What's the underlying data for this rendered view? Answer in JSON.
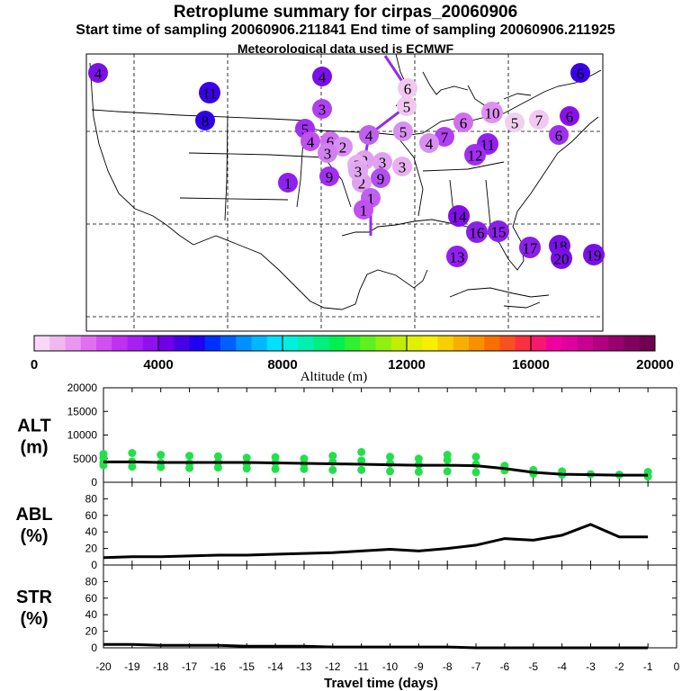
{
  "header": {
    "title": "Retroplume summary for cirpas_20060906",
    "sampling": "Start time of sampling 20060906.211841      End time of sampling 20060906.211925",
    "met": "Meteorological data used is ECMWF"
  },
  "colors": {
    "accent_green": "#22e04a",
    "line": "#000000",
    "plume": "#c47ce8"
  },
  "colorbar": {
    "xlabel": "Altitude (m)",
    "tick_labels": [
      "0",
      "4000",
      "8000",
      "12000",
      "16000",
      "20000"
    ],
    "range": [
      0,
      20000
    ],
    "colors": [
      "#f8d8f8",
      "#f0b8f0",
      "#e898f0",
      "#e070f0",
      "#d050f0",
      "#c030f0",
      "#a820f0",
      "#9010f0",
      "#7000e8",
      "#4800e8",
      "#2000f0",
      "#0030ff",
      "#0060ff",
      "#0090ff",
      "#00b8ff",
      "#00e0ff",
      "#00f0e0",
      "#00f0b0",
      "#00f080",
      "#00f050",
      "#30f030",
      "#60f020",
      "#90f010",
      "#c0f000",
      "#e0f000",
      "#f8f000",
      "#f8d000",
      "#f8b000",
      "#f89000",
      "#f87000",
      "#f85020",
      "#f83040",
      "#f81870",
      "#f000a0",
      "#e000a0",
      "#c80090",
      "#b00080",
      "#980070",
      "#800060",
      "#700050"
    ]
  },
  "map_labels": [
    {
      "t": "4",
      "x": 358,
      "y": 85,
      "c": "#7a10e8"
    },
    {
      "t": "11",
      "x": 233,
      "y": 103,
      "c": "#3a00e8"
    },
    {
      "t": "8",
      "x": 228,
      "y": 134,
      "c": "#3000ea"
    },
    {
      "t": "6",
      "x": 645,
      "y": 81,
      "c": "#3a00e8"
    },
    {
      "t": "3",
      "x": 358,
      "y": 121,
      "c": "#b040f0"
    },
    {
      "t": "5",
      "x": 339,
      "y": 143,
      "c": "#a030f0"
    },
    {
      "t": "4",
      "x": 345,
      "y": 157,
      "c": "#c050f0"
    },
    {
      "t": "6",
      "x": 367,
      "y": 157,
      "c": "#d070f0"
    },
    {
      "t": "2",
      "x": 381,
      "y": 163,
      "c": "#d890f0"
    },
    {
      "t": "4",
      "x": 410,
      "y": 150,
      "c": "#c060f0"
    },
    {
      "t": "5",
      "x": 448,
      "y": 146,
      "c": "#d890f0"
    },
    {
      "t": "6",
      "x": 453,
      "y": 98,
      "c": "#f0c8f0"
    },
    {
      "t": "5",
      "x": 452,
      "y": 118,
      "c": "#f0c8f0"
    },
    {
      "t": "6",
      "x": 515,
      "y": 136,
      "c": "#d070f0"
    },
    {
      "t": "10",
      "x": 547,
      "y": 125,
      "c": "#e090f0"
    },
    {
      "t": "5",
      "x": 572,
      "y": 136,
      "c": "#f0d0f0"
    },
    {
      "t": "7",
      "x": 599,
      "y": 133,
      "c": "#f0c8f0"
    },
    {
      "t": "6",
      "x": 633,
      "y": 129,
      "c": "#8a10e8"
    },
    {
      "t": "6",
      "x": 621,
      "y": 150,
      "c": "#a030f0"
    },
    {
      "t": "7",
      "x": 494,
      "y": 152,
      "c": "#b040f0"
    },
    {
      "t": "4",
      "x": 477,
      "y": 159,
      "c": "#d890f0"
    },
    {
      "t": "11",
      "x": 542,
      "y": 160,
      "c": "#9020f0"
    },
    {
      "t": "12",
      "x": 528,
      "y": 172,
      "c": "#a030f0"
    },
    {
      "t": "3",
      "x": 447,
      "y": 185,
      "c": "#e8b0f0"
    },
    {
      "t": "2",
      "x": 405,
      "y": 178,
      "c": "#e0a0f0"
    },
    {
      "t": "3",
      "x": 364,
      "y": 170,
      "c": "#d080f0"
    },
    {
      "t": "2",
      "x": 397,
      "y": 183,
      "c": "#e8b0f0"
    },
    {
      "t": "3",
      "x": 425,
      "y": 180,
      "c": "#e0a0f0"
    },
    {
      "t": "9",
      "x": 366,
      "y": 196,
      "c": "#a030f0"
    },
    {
      "t": "9",
      "x": 423,
      "y": 198,
      "c": "#b050f0"
    },
    {
      "t": "2",
      "x": 402,
      "y": 203,
      "c": "#e0a0f0"
    },
    {
      "t": "3",
      "x": 398,
      "y": 190,
      "c": "#e0a8f0"
    },
    {
      "t": "1",
      "x": 412,
      "y": 220,
      "c": "#c060f0"
    },
    {
      "t": "1",
      "x": 404,
      "y": 233,
      "c": "#c050f0"
    },
    {
      "t": "1",
      "x": 320,
      "y": 203,
      "c": "#9020f0"
    },
    {
      "t": "14",
      "x": 510,
      "y": 240,
      "c": "#8010e8"
    },
    {
      "t": "16",
      "x": 530,
      "y": 258,
      "c": "#8a20e8"
    },
    {
      "t": "15",
      "x": 554,
      "y": 257,
      "c": "#8a20e8"
    },
    {
      "t": "17",
      "x": 589,
      "y": 275,
      "c": "#8a20e8"
    },
    {
      "t": "18",
      "x": 622,
      "y": 273,
      "c": "#7a10e8"
    },
    {
      "t": "20",
      "x": 624,
      "y": 287,
      "c": "#7a10e8"
    },
    {
      "t": "13",
      "x": 508,
      "y": 285,
      "c": "#9020f0"
    },
    {
      "t": "19",
      "x": 660,
      "y": 283,
      "c": "#7a10e8"
    },
    {
      "t": "4",
      "x": 109,
      "y": 81,
      "c": "#7a10e8"
    }
  ],
  "chart_data": [
    {
      "type": "scatter",
      "panel": "ALT",
      "ylabel_line1": "ALT",
      "ylabel_line2": "(m)",
      "ylim": [
        0,
        20000
      ],
      "y_ticks": [
        "0",
        "5000",
        "10000",
        "15000",
        "20000"
      ],
      "x": [
        -20,
        -19,
        -18,
        -17,
        -16,
        -15,
        -14,
        -13,
        -12,
        -11,
        -10,
        -9,
        -8,
        -7,
        -6,
        -5,
        -4,
        -3,
        -2,
        -1
      ],
      "series": [
        {
          "name": "mean altitude",
          "values": [
            4300,
            4300,
            4200,
            4200,
            4200,
            4200,
            4100,
            4000,
            3900,
            3800,
            3700,
            3600,
            3600,
            3500,
            2900,
            2100,
            1700,
            1600,
            1500,
            1500
          ]
        }
      ],
      "scatter_points": [
        [
          -20,
          6000
        ],
        [
          -20,
          5200
        ],
        [
          -20,
          4200
        ],
        [
          -20,
          3600
        ],
        [
          -19,
          6200
        ],
        [
          -19,
          4400
        ],
        [
          -19,
          3300
        ],
        [
          -18,
          5800
        ],
        [
          -18,
          4100
        ],
        [
          -18,
          3200
        ],
        [
          -17,
          5600
        ],
        [
          -17,
          4000
        ],
        [
          -17,
          3000
        ],
        [
          -16,
          5500
        ],
        [
          -16,
          4200
        ],
        [
          -16,
          3100
        ],
        [
          -15,
          5200
        ],
        [
          -15,
          3900
        ],
        [
          -15,
          2900
        ],
        [
          -14,
          5300
        ],
        [
          -14,
          4100
        ],
        [
          -14,
          2800
        ],
        [
          -13,
          5000
        ],
        [
          -13,
          3900
        ],
        [
          -13,
          2800
        ],
        [
          -12,
          5600
        ],
        [
          -12,
          4300
        ],
        [
          -12,
          2600
        ],
        [
          -11,
          6400
        ],
        [
          -11,
          4600
        ],
        [
          -11,
          2600
        ],
        [
          -10,
          5400
        ],
        [
          -10,
          4000
        ],
        [
          -10,
          2300
        ],
        [
          -9,
          5000
        ],
        [
          -9,
          3700
        ],
        [
          -9,
          2200
        ],
        [
          -8,
          5800
        ],
        [
          -8,
          4700
        ],
        [
          -8,
          2300
        ],
        [
          -7,
          5400
        ],
        [
          -7,
          3800
        ],
        [
          -7,
          2100
        ],
        [
          -6,
          3500
        ],
        [
          -6,
          2500
        ],
        [
          -5,
          2600
        ],
        [
          -5,
          1800
        ],
        [
          -4,
          2300
        ],
        [
          -4,
          1600
        ],
        [
          -3,
          1700
        ],
        [
          -2,
          1600
        ],
        [
          -1,
          2200
        ],
        [
          -1,
          1200
        ]
      ]
    },
    {
      "type": "line",
      "panel": "ABL",
      "ylabel_line1": "ABL",
      "ylabel_line2": "(%)",
      "ylim": [
        0,
        100
      ],
      "y_ticks": [
        "0",
        "20",
        "40",
        "60",
        "80"
      ],
      "x": [
        -20,
        -19,
        -18,
        -17,
        -16,
        -15,
        -14,
        -13,
        -12,
        -11,
        -10,
        -9,
        -8,
        -7,
        -6,
        -5,
        -4,
        -3,
        -2,
        -1
      ],
      "series": [
        {
          "name": "ABL",
          "values": [
            9,
            10,
            10,
            11,
            12,
            12,
            13,
            14,
            15,
            17,
            19,
            17,
            20,
            24,
            32,
            30,
            36,
            49,
            34,
            34
          ]
        }
      ]
    },
    {
      "type": "line",
      "panel": "STR",
      "ylabel_line1": "STR",
      "ylabel_line2": "(%)",
      "ylim": [
        0,
        100
      ],
      "y_ticks": [
        "0",
        "20",
        "40",
        "60",
        "80"
      ],
      "x": [
        -20,
        -19,
        -18,
        -17,
        -16,
        -15,
        -14,
        -13,
        -12,
        -11,
        -10,
        -9,
        -8,
        -7,
        -6,
        -5,
        -4,
        -3,
        -2,
        -1
      ],
      "series": [
        {
          "name": "STR",
          "values": [
            4,
            4,
            3,
            3,
            3,
            2,
            2,
            2,
            1,
            1,
            1,
            1,
            1,
            0,
            0,
            0,
            0,
            0,
            0,
            0
          ]
        }
      ]
    }
  ],
  "x_axis": {
    "xlabel": "Travel time (days)",
    "range": [
      -20,
      0
    ],
    "tick_labels": [
      "-20",
      "-19",
      "-18",
      "-17",
      "-16",
      "-15",
      "-14",
      "-13",
      "-12",
      "-11",
      "-10",
      "-9",
      "-8",
      "-7",
      "-6",
      "-5",
      "-4",
      "-3",
      "-2",
      "-1",
      "0"
    ]
  }
}
